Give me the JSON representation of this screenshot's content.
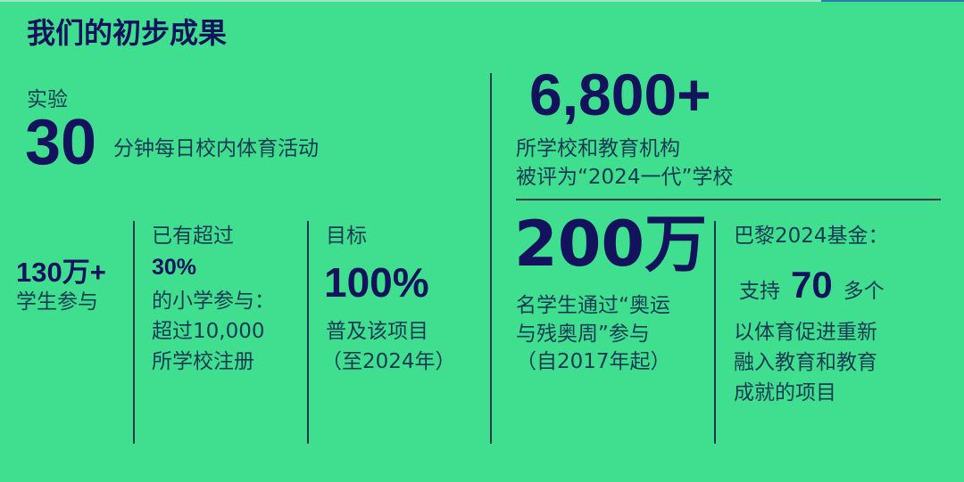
{
  "title": "我们的初步成果",
  "pilot": {
    "label": "实验",
    "number": "30",
    "desc": "分钟每日校内体育活动"
  },
  "students": {
    "number": "130万+",
    "desc": "学生参与"
  },
  "primary": {
    "intro": "已有超过",
    "number": "30%",
    "lines": [
      "的小学参与：",
      "超过10,000",
      "所学校注册"
    ]
  },
  "goal": {
    "label": "目标",
    "number": "100%",
    "lines": [
      "普及该项目",
      "（至2024年）"
    ]
  },
  "schools": {
    "number": "6,800+",
    "lines": [
      "所学校和教育机构",
      "被评为“2024一代”学校"
    ]
  },
  "week": {
    "number": "200万",
    "lines": [
      "名学生通过“奥运",
      "与残奥周”参与",
      "（自2017年起）"
    ]
  },
  "fund": {
    "label": "巴黎2024基金：",
    "prefix": "支持",
    "number": "70",
    "suffix": "多个",
    "lines": [
      "以体育促进重新",
      "融入教育和教育",
      "成就的项目"
    ]
  },
  "colors": {
    "background": "#40df8f",
    "numbers": "#12135c",
    "text": "#173a55"
  }
}
